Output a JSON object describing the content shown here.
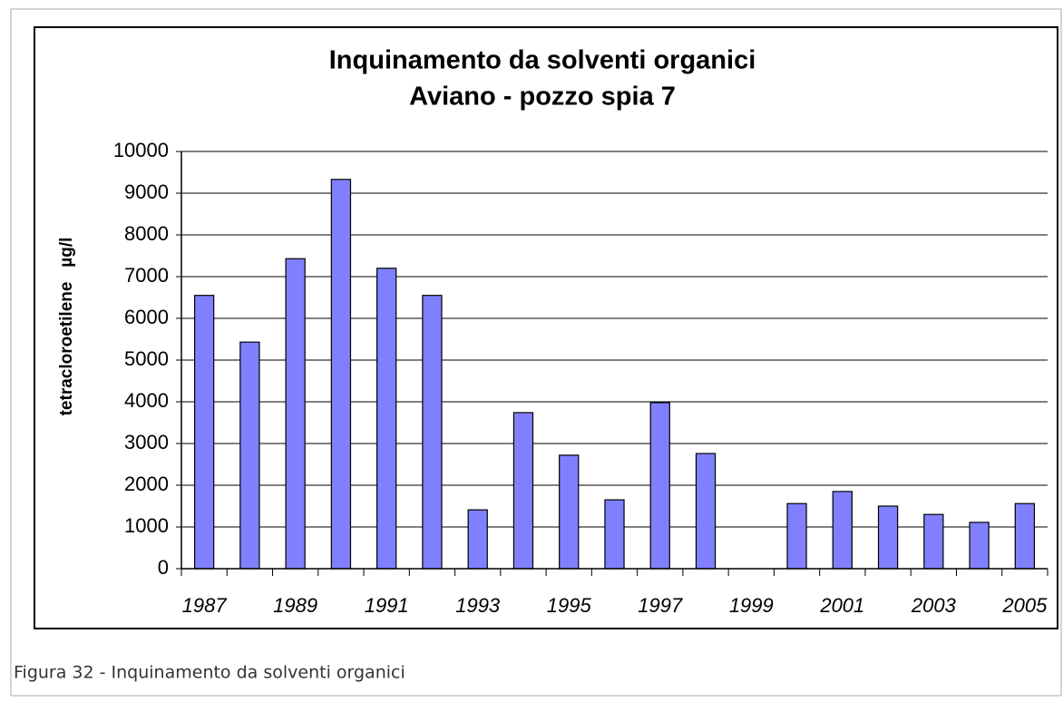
{
  "chart_data": {
    "type": "bar",
    "title": "Inquinamento da solventi organici",
    "subtitle": "Aviano - pozzo spia 7",
    "y_label": "tetracloroetilene   µg/l",
    "categories": [
      "1987",
      null,
      "1989",
      null,
      "1991",
      null,
      "1993",
      null,
      "1995",
      null,
      "1997",
      null,
      "1999",
      null,
      "2001",
      null,
      "2003",
      null,
      "2005"
    ],
    "values": [
      6550,
      5430,
      7430,
      9330,
      7200,
      6550,
      1410,
      3740,
      2720,
      1650,
      3980,
      2760,
      null,
      1560,
      1850,
      1500,
      1300,
      1110,
      1560
    ],
    "color": "#8080ff",
    "ylim": [
      0,
      10000
    ],
    "yticks": [
      0,
      1000,
      2000,
      3000,
      4000,
      5000,
      6000,
      7000,
      8000,
      9000,
      10000
    ],
    "grid": true
  },
  "caption": "Figura 32 - Inquinamento da solventi organici"
}
